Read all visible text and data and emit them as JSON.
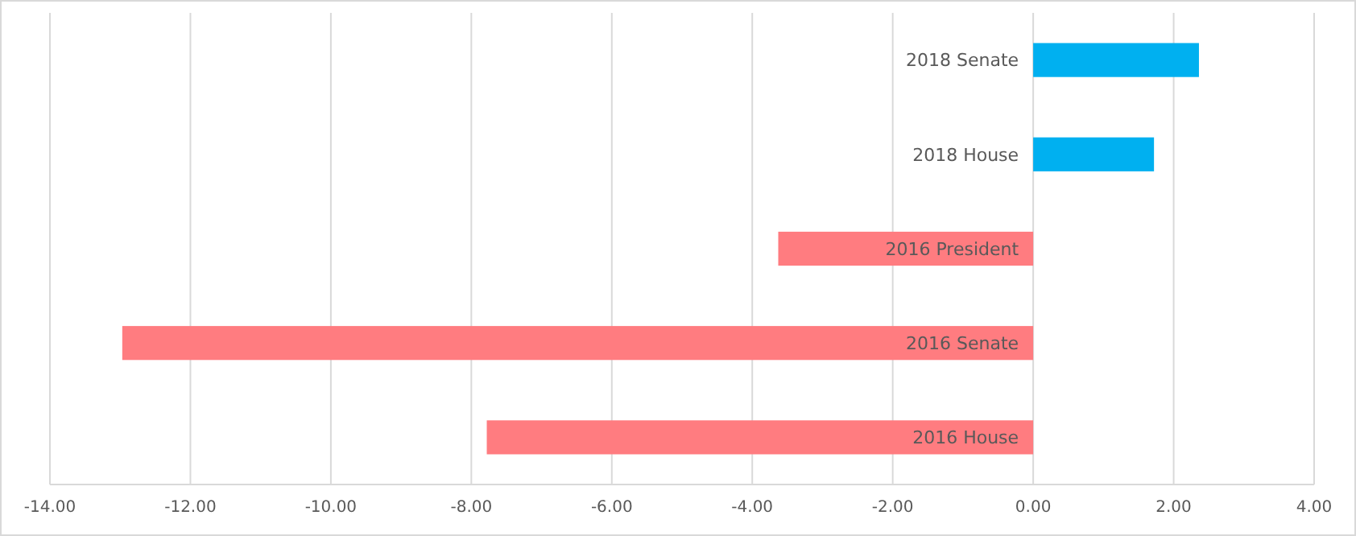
{
  "chart_data": {
    "type": "bar",
    "orientation": "horizontal",
    "categories": [
      "2018 Senate",
      "2018 House",
      "2016 President",
      "2016 Senate",
      "2016 House"
    ],
    "values": [
      2.36,
      1.72,
      -3.63,
      -12.97,
      -7.78
    ],
    "colors": [
      "#00b0f0",
      "#00b0f0",
      "#ff7c80",
      "#ff7c80",
      "#ff7c80"
    ],
    "xlim": [
      -14,
      4
    ],
    "xticks": [
      {
        "value": -14,
        "label": "-14.00"
      },
      {
        "value": -12,
        "label": "-12.00"
      },
      {
        "value": -10,
        "label": "-10.00"
      },
      {
        "value": -8,
        "label": "-8.00"
      },
      {
        "value": -6,
        "label": "-6.00"
      },
      {
        "value": -4,
        "label": "-4.00"
      },
      {
        "value": -2,
        "label": "-2.00"
      },
      {
        "value": 0,
        "label": "0.00"
      },
      {
        "value": 2,
        "label": "2.00"
      },
      {
        "value": 4,
        "label": "4.00"
      }
    ],
    "grid": "x"
  }
}
